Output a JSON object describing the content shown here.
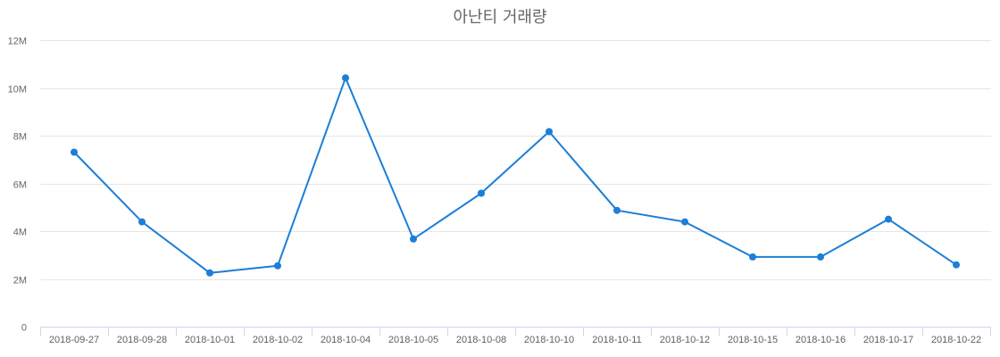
{
  "chart_data": {
    "type": "line",
    "title": "아난티 거래량",
    "xlabel": "",
    "ylabel": "",
    "ylim": [
      0,
      12000000
    ],
    "yticks": [
      "0",
      "2M",
      "4M",
      "6M",
      "8M",
      "10M",
      "12M"
    ],
    "grid": true,
    "legend": null,
    "categories": [
      "2018-09-27",
      "2018-09-28",
      "2018-10-01",
      "2018-10-02",
      "2018-10-04",
      "2018-10-05",
      "2018-10-08",
      "2018-10-10",
      "2018-10-11",
      "2018-10-12",
      "2018-10-15",
      "2018-10-16",
      "2018-10-17",
      "2018-10-22"
    ],
    "series": [
      {
        "name": "거래량",
        "color": "#1c7ed6",
        "values": [
          7310000,
          4390000,
          2250000,
          2550000,
          10420000,
          3670000,
          5590000,
          8170000,
          4870000,
          4390000,
          2920000,
          2920000,
          4500000,
          2590000
        ]
      }
    ]
  },
  "colors": {
    "line": "#1c7ed6",
    "grid": "#e6e6e6",
    "axis": "#ccd6eb",
    "title": "#666666",
    "tick_text": "#666666"
  }
}
